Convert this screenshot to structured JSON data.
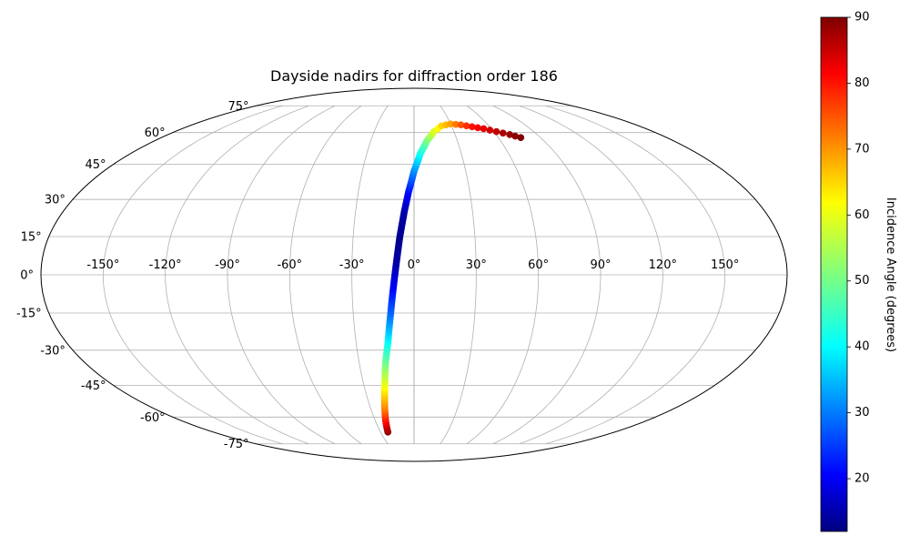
{
  "chart_data": {
    "type": "scatter",
    "projection": "mollweide",
    "title": "Dayside nadirs for diffraction order 186",
    "xlabel": "",
    "ylabel": "",
    "grid": true,
    "lon_ticks": [
      -150,
      -120,
      -90,
      -60,
      -30,
      0,
      30,
      60,
      90,
      120,
      150
    ],
    "lon_tick_labels": [
      "-150°",
      "-120°",
      "-90°",
      "-60°",
      "-30°",
      "0°",
      "30°",
      "60°",
      "90°",
      "120°",
      "150°"
    ],
    "lat_ticks": [
      -75,
      -60,
      -45,
      -30,
      -15,
      0,
      15,
      30,
      45,
      60,
      75
    ],
    "lat_tick_labels": [
      "-75°",
      "-60°",
      "-45°",
      "-30°",
      "-15°",
      "0°",
      "15°",
      "30°",
      "45°",
      "60°",
      "75°"
    ],
    "colorbar": {
      "label": "Incidence Angle (degrees)",
      "colormap": "jet",
      "range": [
        12,
        90
      ],
      "ticks": [
        20,
        30,
        40,
        50,
        60,
        70,
        80,
        90
      ],
      "tick_labels": [
        "20",
        "30",
        "40",
        "50",
        "60",
        "70",
        "80",
        "90"
      ]
    },
    "series": [
      {
        "points": [
          {
            "lon": -23.5,
            "lat": -68.0,
            "c": 89
          },
          {
            "lon": -22.0,
            "lat": -62.0,
            "c": 80
          },
          {
            "lon": -20.0,
            "lat": -55.0,
            "c": 70
          },
          {
            "lon": -17.5,
            "lat": -45.0,
            "c": 60
          },
          {
            "lon": -15.5,
            "lat": -35.0,
            "c": 50
          },
          {
            "lon": -13.5,
            "lat": -27.0,
            "c": 42
          },
          {
            "lon": -11.5,
            "lat": -15.0,
            "c": 30
          },
          {
            "lon": -10.0,
            "lat": -5.0,
            "c": 22
          },
          {
            "lon": -8.5,
            "lat": 5.0,
            "c": 15
          },
          {
            "lon": -7.0,
            "lat": 15.0,
            "c": 13
          },
          {
            "lon": -5.0,
            "lat": 25.0,
            "c": 15
          },
          {
            "lon": -3.0,
            "lat": 33.0,
            "c": 22
          },
          {
            "lon": 0.0,
            "lat": 42.0,
            "c": 32
          },
          {
            "lon": 4.0,
            "lat": 50.0,
            "c": 42
          },
          {
            "lon": 9.0,
            "lat": 56.0,
            "c": 50
          },
          {
            "lon": 15.0,
            "lat": 60.5,
            "c": 58
          },
          {
            "lon": 22.0,
            "lat": 63.5,
            "c": 64
          },
          {
            "lon": 30.0,
            "lat": 64.5,
            "c": 68
          },
          {
            "lon": 38.0,
            "lat": 64.0,
            "c": 74
          },
          {
            "lon": 46.0,
            "lat": 63.0,
            "c": 79
          },
          {
            "lon": 54.0,
            "lat": 62.0,
            "c": 82
          },
          {
            "lon": 62.0,
            "lat": 60.5,
            "c": 85
          },
          {
            "lon": 70.0,
            "lat": 59.0,
            "c": 88
          },
          {
            "lon": 76.0,
            "lat": 57.5,
            "c": 90
          }
        ]
      }
    ]
  }
}
